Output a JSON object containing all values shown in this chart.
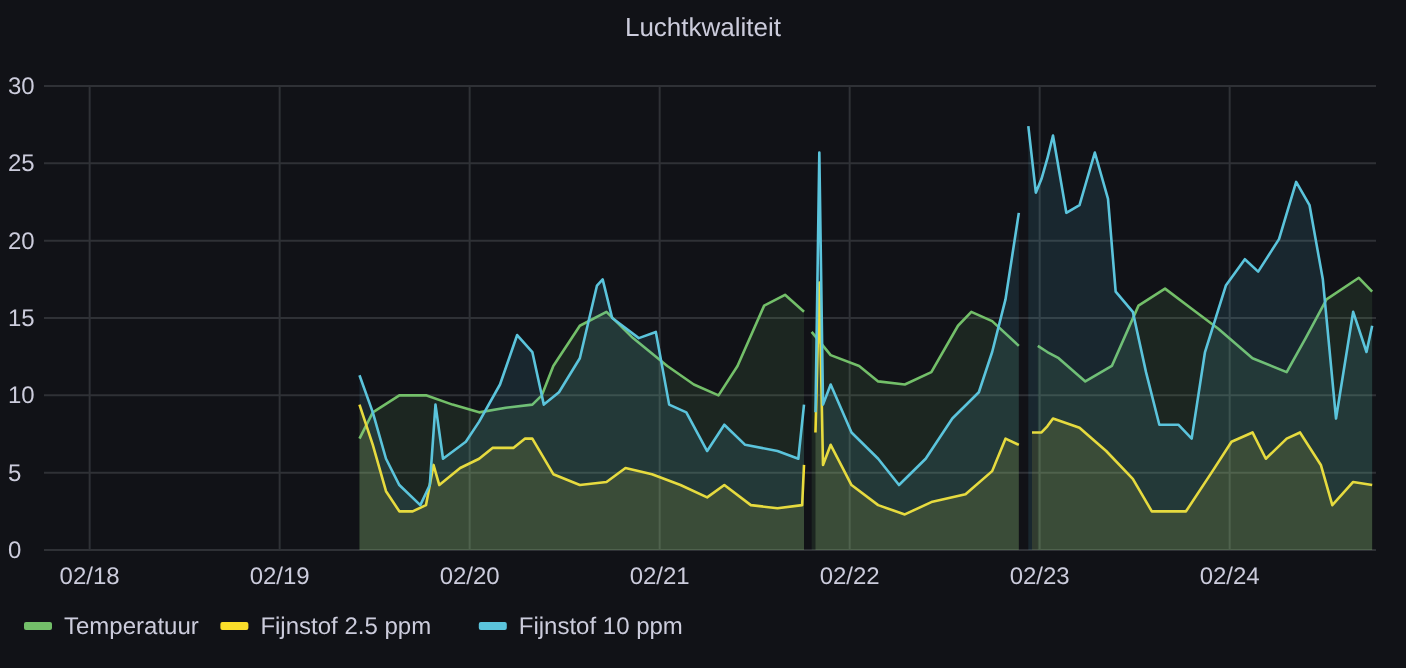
{
  "chart_data": {
    "type": "area",
    "title": "Luchtkwaliteit",
    "xlim": [
      "--02-17T18:14",
      "--02-24T18:29"
    ],
    "xticks": [
      {
        "value": "--02-18",
        "label": "02/18"
      },
      {
        "value": "--02-19",
        "label": "02/19"
      },
      {
        "value": "--02-20",
        "label": "02/20"
      },
      {
        "value": "--02-21",
        "label": "02/21"
      },
      {
        "value": "--02-22",
        "label": "02/22"
      },
      {
        "value": "--02-23",
        "label": "02/23"
      },
      {
        "value": "--02-24",
        "label": "02/24"
      }
    ],
    "ylim": [
      0,
      30
    ],
    "yticks": [
      0,
      5,
      10,
      15,
      20,
      25,
      30
    ],
    "grid": true,
    "legend": "bottom",
    "marker": "none",
    "line_style": "solid",
    "series": [
      {
        "name": "Temperatuur",
        "color": "#73bf69",
        "x": [
          "--02-19T10:05",
          "--02-19T11:46",
          "--02-19T15:07",
          "--02-19T18:29",
          "--02-19T21:50",
          "--02-20T01:12",
          "--02-20T04:34",
          "--02-20T07:55",
          "--02-20T09:07",
          "--02-20T10:34",
          "--02-20T13:55",
          "--02-20T17:17",
          "--02-20T20:38",
          "--02-21T00:58",
          "--02-21T04:19",
          "--02-21T07:26",
          "--02-21T09:50",
          "--02-21T13:12",
          "--02-21T15:50",
          "--02-21T18:14",
          "--02-21T18:43",
          "--02-21T19:12",
          "--02-21T21:36",
          "--02-22T01:12",
          "--02-22T03:36",
          "--02-22T06:58",
          "--02-22T10:19",
          "--02-22T13:41",
          "--02-22T15:22",
          "--02-22T18:00",
          "--02-22T21:22",
          "--02-22T22:05",
          "--02-22T23:46",
          "--02-23T00:58",
          "--02-23T02:24",
          "--02-23T05:46",
          "--02-23T09:07",
          "--02-23T12:29",
          "--02-23T15:50",
          "--02-23T19:12",
          "--02-23T22:34",
          "--02-24T02:53",
          "--02-24T07:12",
          "--02-24T09:36",
          "--02-24T12:14",
          "--02-24T16:19",
          "--02-24T18:00"
        ],
        "values": [
          7.2,
          8.9,
          10.0,
          10.0,
          9.4,
          8.9,
          9.2,
          9.4,
          10.0,
          11.9,
          14.5,
          15.4,
          13.7,
          11.9,
          10.7,
          10.0,
          11.9,
          15.8,
          16.5,
          15.4,
          null,
          14.1,
          12.6,
          11.9,
          10.9,
          10.7,
          11.5,
          14.5,
          15.4,
          14.8,
          13.2,
          null,
          13.2,
          12.8,
          12.4,
          10.9,
          11.9,
          15.8,
          16.9,
          15.6,
          14.3,
          12.4,
          11.5,
          13.7,
          16.2,
          17.6,
          16.7
        ]
      },
      {
        "name": "Fijnstof 2.5 ppm",
        "color": "#fade2a",
        "x": [
          "--02-19T10:05",
          "--02-19T11:46",
          "--02-19T13:26",
          "--02-19T15:07",
          "--02-19T16:48",
          "--02-19T18:29",
          "--02-19T19:26",
          "--02-19T20:10",
          "--02-19T22:48",
          "--02-20T01:12",
          "--02-20T02:53",
          "--02-20T05:31",
          "--02-20T06:58",
          "--02-20T07:55",
          "--02-20T10:34",
          "--02-20T13:55",
          "--02-20T17:17",
          "--02-20T19:41",
          "--02-20T23:02",
          "--02-21T02:38",
          "--02-21T06:00",
          "--02-21T08:10",
          "--02-21T11:31",
          "--02-21T14:53",
          "--02-21T18:00",
          "--02-21T18:14",
          "--02-21T18:43",
          "--02-21T19:41",
          "--02-21T20:10",
          "--02-21T20:38",
          "--02-21T21:36",
          "--02-22T00:14",
          "--02-22T03:36",
          "--02-22T06:58",
          "--02-22T10:19",
          "--02-22T14:38",
          "--02-22T18:00",
          "--02-22T19:41",
          "--02-22T21:22",
          "--02-22T22:05",
          "--02-22T23:02",
          "--02-23T00:14",
          "--02-23T00:58",
          "--02-23T01:41",
          "--02-23T05:02",
          "--02-23T08:24",
          "--02-23T11:46",
          "--02-23T14:10",
          "--02-23T18:29",
          "--02-23T21:50",
          "--02-24T00:14",
          "--02-24T02:53",
          "--02-24T04:34",
          "--02-24T07:12",
          "--02-24T08:53",
          "--02-24T11:31",
          "--02-24T12:58",
          "--02-24T15:36",
          "--02-24T18:00"
        ],
        "values": [
          9.4,
          6.8,
          3.8,
          2.5,
          2.5,
          2.9,
          5.5,
          4.2,
          5.3,
          5.9,
          6.6,
          6.6,
          7.2,
          7.2,
          4.9,
          4.2,
          4.4,
          5.3,
          4.9,
          4.2,
          3.4,
          4.2,
          2.9,
          2.7,
          2.9,
          5.5,
          null,
          7.6,
          17.3,
          5.5,
          6.8,
          4.2,
          2.9,
          2.3,
          3.1,
          3.6,
          5.1,
          7.2,
          6.8,
          null,
          7.6,
          7.6,
          8.0,
          8.5,
          7.9,
          6.4,
          4.6,
          2.5,
          2.5,
          5.1,
          7.0,
          7.6,
          5.9,
          7.2,
          7.6,
          5.5,
          2.9,
          4.4,
          4.2
        ]
      },
      {
        "name": "Fijnstof 10 ppm",
        "color": "#5bc4dc",
        "x": [
          "--02-19T10:05",
          "--02-19T11:46",
          "--02-19T13:26",
          "--02-19T15:07",
          "--02-19T17:46",
          "--02-19T18:58",
          "--02-19T19:41",
          "--02-19T20:38",
          "--02-19T23:31",
          "--02-20T01:12",
          "--02-20T03:50",
          "--02-20T06:00",
          "--02-20T07:55",
          "--02-20T09:22",
          "--02-20T11:17",
          "--02-20T13:55",
          "--02-20T16:05",
          "--02-20T16:48",
          "--02-20T18:00",
          "--02-20T21:22",
          "--02-20T23:31",
          "--02-21T01:12",
          "--02-21T03:22",
          "--02-21T06:00",
          "--02-21T08:10",
          "--02-21T10:48",
          "--02-21T14:53",
          "--02-21T17:31",
          "--02-21T18:14",
          "--02-21T18:43",
          "--02-21T19:41",
          "--02-21T20:10",
          "--02-21T20:38",
          "--02-21T21:36",
          "--02-22T00:14",
          "--02-22T03:36",
          "--02-22T06:14",
          "--02-22T09:36",
          "--02-22T12:58",
          "--02-22T16:19",
          "--02-22T18:00",
          "--02-22T19:41",
          "--02-22T21:22",
          "--02-22T22:05",
          "--02-22T22:34",
          "--02-22T23:31",
          "--02-23T00:14",
          "--02-23T00:58",
          "--02-23T01:41",
          "--02-23T03:22",
          "--02-23T05:02",
          "--02-23T06:58",
          "--02-23T08:38",
          "--02-23T09:36",
          "--02-23T11:46",
          "--02-23T13:26",
          "--02-23T15:07",
          "--02-23T17:31",
          "--02-23T19:12",
          "--02-23T20:53",
          "--02-23T23:31",
          "--02-24T01:55",
          "--02-24T03:36",
          "--02-24T06:14",
          "--02-24T08:24",
          "--02-24T10:05",
          "--02-24T11:46",
          "--02-24T13:26",
          "--02-24T15:36",
          "--02-24T17:17",
          "--02-24T18:00"
        ],
        "values": [
          11.3,
          8.9,
          5.9,
          4.2,
          2.9,
          4.2,
          9.4,
          5.9,
          7.0,
          8.3,
          10.7,
          13.9,
          12.8,
          9.4,
          10.2,
          12.4,
          17.1,
          17.5,
          15.0,
          13.7,
          14.1,
          9.4,
          8.9,
          6.4,
          8.1,
          6.8,
          6.4,
          5.9,
          9.4,
          null,
          8.9,
          25.7,
          9.4,
          10.7,
          7.6,
          5.9,
          4.2,
          5.9,
          8.5,
          10.2,
          12.8,
          16.2,
          21.8,
          null,
          27.4,
          23.1,
          24.0,
          25.3,
          26.8,
          21.8,
          22.3,
          25.7,
          22.7,
          16.7,
          15.4,
          11.5,
          8.1,
          8.1,
          7.2,
          12.8,
          17.1,
          18.8,
          18.0,
          20.1,
          23.8,
          22.3,
          17.5,
          8.5,
          15.4,
          12.8,
          14.5
        ]
      }
    ]
  }
}
